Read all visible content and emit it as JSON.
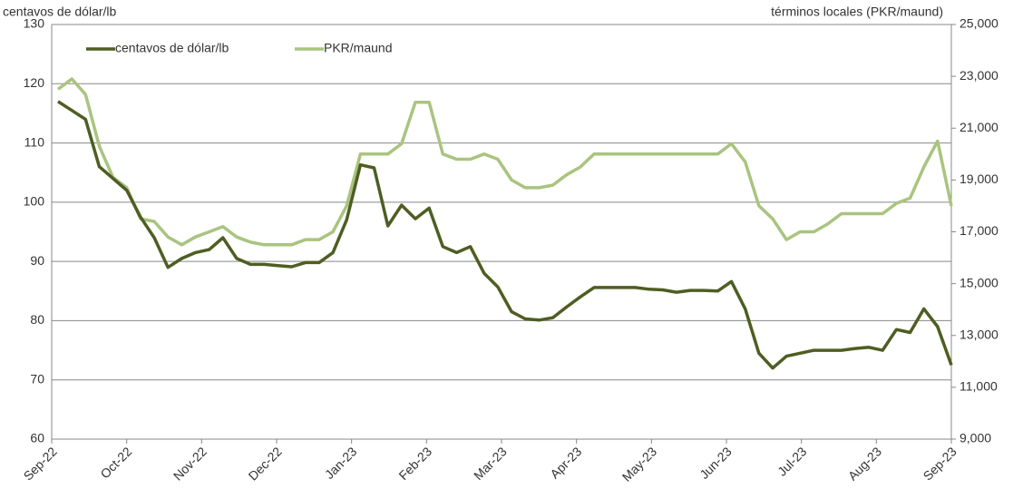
{
  "chart_data": {
    "type": "line",
    "y_axis_label": "centavos de dólar/lb",
    "y2_axis_label": "términos locales (PKR/maund)",
    "x_labels": [
      "Sep-22",
      "Oct-22",
      "Nov-22",
      "Dec-22",
      "Jan-23",
      "Feb-23",
      "Mar-23",
      "Apr-23",
      "May-23",
      "Jun-23",
      "Jul-23",
      "Aug-23",
      "Sep-23"
    ],
    "ylim": [
      60,
      130
    ],
    "yticks": [
      60,
      70,
      80,
      90,
      100,
      110,
      120,
      130
    ],
    "y2lim": [
      9000,
      25000
    ],
    "y2ticks": [
      {
        "value": 9000,
        "label": "9,000"
      },
      {
        "value": 11000,
        "label": "11,000"
      },
      {
        "value": 13000,
        "label": "13,000"
      },
      {
        "value": 15000,
        "label": "15,000"
      },
      {
        "value": 17000,
        "label": "17,000"
      },
      {
        "value": 19000,
        "label": "19,000"
      },
      {
        "value": 21000,
        "label": "21,000"
      },
      {
        "value": 23000,
        "label": "23,000"
      },
      {
        "value": 25000,
        "label": "25,000"
      }
    ],
    "grid": true,
    "legend": "top-left",
    "series": [
      {
        "name": "centavos de dólar/lb",
        "color": "#4e5e22",
        "values": [
          117,
          115.5,
          114,
          106,
          104,
          102,
          97.5,
          94,
          89,
          90.5,
          91.5,
          92,
          94,
          90.5,
          89.5,
          89.5,
          89.3,
          89.1,
          89.8,
          89.8,
          91.5,
          97,
          106.3,
          105.8,
          96,
          99.5,
          97.2,
          99,
          92.5,
          91.5,
          92.5,
          88,
          85.7,
          81.5,
          80.3,
          80.1,
          80.5,
          82.3,
          84,
          85.6,
          85.6,
          85.6,
          85.6,
          85.3,
          85.2,
          84.8,
          85.1,
          85.1,
          85,
          86.6,
          82,
          74.5,
          72,
          74,
          74.5,
          75,
          75,
          75,
          75.3,
          75.5,
          75,
          78.5,
          78,
          82,
          79,
          72.5
        ]
      },
      {
        "name": "PKR/maund",
        "color": "#a9c47f",
        "axis": "y2",
        "values": [
          22500,
          22900,
          22300,
          20300,
          19100,
          18700,
          17500,
          17400,
          16800,
          16500,
          16800,
          17000,
          17200,
          16800,
          16600,
          16500,
          16500,
          16500,
          16700,
          16700,
          17000,
          18000,
          20000,
          20000,
          20000,
          20400,
          22000,
          22000,
          20000,
          19800,
          19800,
          20000,
          19800,
          19000,
          18700,
          18700,
          18800,
          19200,
          19500,
          20000,
          20000,
          20000,
          20000,
          20000,
          20000,
          20000,
          20000,
          20000,
          20000,
          20400,
          19700,
          18000,
          17500,
          16700,
          17000,
          17000,
          17300,
          17700,
          17700,
          17700,
          17700,
          18100,
          18300,
          19500,
          20500,
          18000
        ]
      }
    ]
  }
}
